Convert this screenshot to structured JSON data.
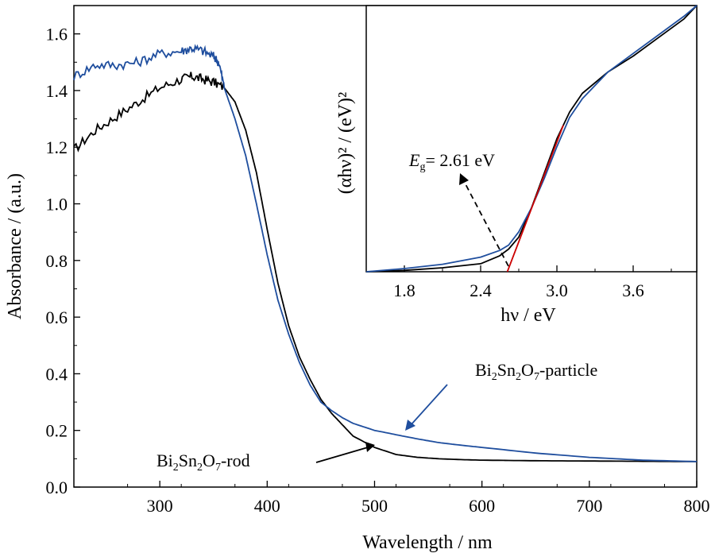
{
  "chart_data": [
    {
      "type": "line",
      "xlabel": "Wavelength / nm",
      "ylabel": "Absorbance / (a.u.)",
      "xlim": [
        220,
        800
      ],
      "ylim": [
        0.0,
        1.7
      ],
      "xticks": [
        "300",
        "400",
        "500",
        "600",
        "700",
        "800"
      ],
      "yticks": [
        "0.0",
        "0.2",
        "0.4",
        "0.6",
        "0.8",
        "1.0",
        "1.2",
        "1.4",
        "1.6"
      ],
      "series": [
        {
          "name": "Bi2Sn2O7-rod",
          "color": "#000000",
          "x": [
            220,
            240,
            260,
            280,
            300,
            320,
            330,
            340,
            350,
            360,
            370,
            380,
            390,
            400,
            410,
            420,
            430,
            440,
            450,
            460,
            470,
            480,
            500,
            520,
            540,
            560,
            580,
            600,
            650,
            700,
            750,
            800
          ],
          "y": [
            1.19,
            1.26,
            1.31,
            1.36,
            1.41,
            1.44,
            1.45,
            1.44,
            1.43,
            1.41,
            1.36,
            1.26,
            1.11,
            0.91,
            0.72,
            0.57,
            0.46,
            0.38,
            0.31,
            0.26,
            0.22,
            0.18,
            0.14,
            0.115,
            0.105,
            0.1,
            0.097,
            0.095,
            0.093,
            0.092,
            0.091,
            0.09
          ]
        },
        {
          "name": "Bi2Sn2O7-particle",
          "color": "#1f4e9e",
          "x": [
            220,
            240,
            260,
            280,
            300,
            320,
            330,
            340,
            350,
            355,
            360,
            370,
            380,
            390,
            400,
            410,
            420,
            430,
            440,
            450,
            460,
            470,
            480,
            500,
            520,
            540,
            560,
            580,
            600,
            650,
            700,
            750,
            800
          ],
          "y": [
            1.45,
            1.49,
            1.49,
            1.5,
            1.53,
            1.54,
            1.55,
            1.54,
            1.52,
            1.5,
            1.41,
            1.3,
            1.17,
            1.0,
            0.82,
            0.66,
            0.54,
            0.44,
            0.36,
            0.3,
            0.27,
            0.245,
            0.225,
            0.2,
            0.185,
            0.17,
            0.157,
            0.148,
            0.14,
            0.12,
            0.105,
            0.095,
            0.09
          ]
        }
      ],
      "annotations": [
        {
          "base": "Bi",
          "s1": "2",
          "mid": "Sn",
          "s2": "2",
          "tail": "O",
          "s3": "7",
          "suffix": "-particle",
          "target": "Bi2Sn2O7-particle"
        },
        {
          "base": "Bi",
          "s1": "2",
          "mid": "Sn",
          "s2": "2",
          "tail": "O",
          "s3": "7",
          "suffix": "-rod",
          "target": "Bi2Sn2O7-rod"
        }
      ]
    },
    {
      "type": "line",
      "inset": true,
      "xlabel": "hν / eV",
      "ylabel": "(αhν)² / (eV)²",
      "xlim": [
        1.5,
        4.1
      ],
      "ylim": [
        0,
        1
      ],
      "xticks": [
        "1.8",
        "2.4",
        "3.0",
        "3.6"
      ],
      "annotation": {
        "symbol": "E",
        "subscript": "g",
        "text": "= 2.61 eV"
      },
      "series": [
        {
          "name": "Bi2Sn2O7-rod",
          "color": "#000000",
          "x": [
            1.5,
            1.8,
            2.1,
            2.4,
            2.55,
            2.62,
            2.7,
            2.8,
            2.9,
            3.0,
            3.1,
            3.2,
            3.4,
            3.6,
            3.8,
            4.0,
            4.1
          ],
          "y": [
            0.0,
            0.005,
            0.015,
            0.03,
            0.06,
            0.085,
            0.13,
            0.24,
            0.37,
            0.5,
            0.6,
            0.67,
            0.75,
            0.81,
            0.88,
            0.95,
            1.0
          ]
        },
        {
          "name": "Bi2Sn2O7-particle",
          "color": "#1f4e9e",
          "x": [
            1.5,
            1.8,
            2.1,
            2.4,
            2.55,
            2.62,
            2.7,
            2.8,
            2.9,
            3.0,
            3.1,
            3.2,
            3.4,
            3.6,
            3.8,
            4.0,
            4.1
          ],
          "y": [
            0.0,
            0.012,
            0.028,
            0.055,
            0.08,
            0.1,
            0.15,
            0.24,
            0.35,
            0.47,
            0.58,
            0.65,
            0.75,
            0.82,
            0.89,
            0.96,
            1.0
          ]
        },
        {
          "name": "tangent",
          "color": "#cc0000",
          "x": [
            2.61,
            3.05
          ],
          "y": [
            0.0,
            0.55
          ]
        }
      ]
    }
  ]
}
